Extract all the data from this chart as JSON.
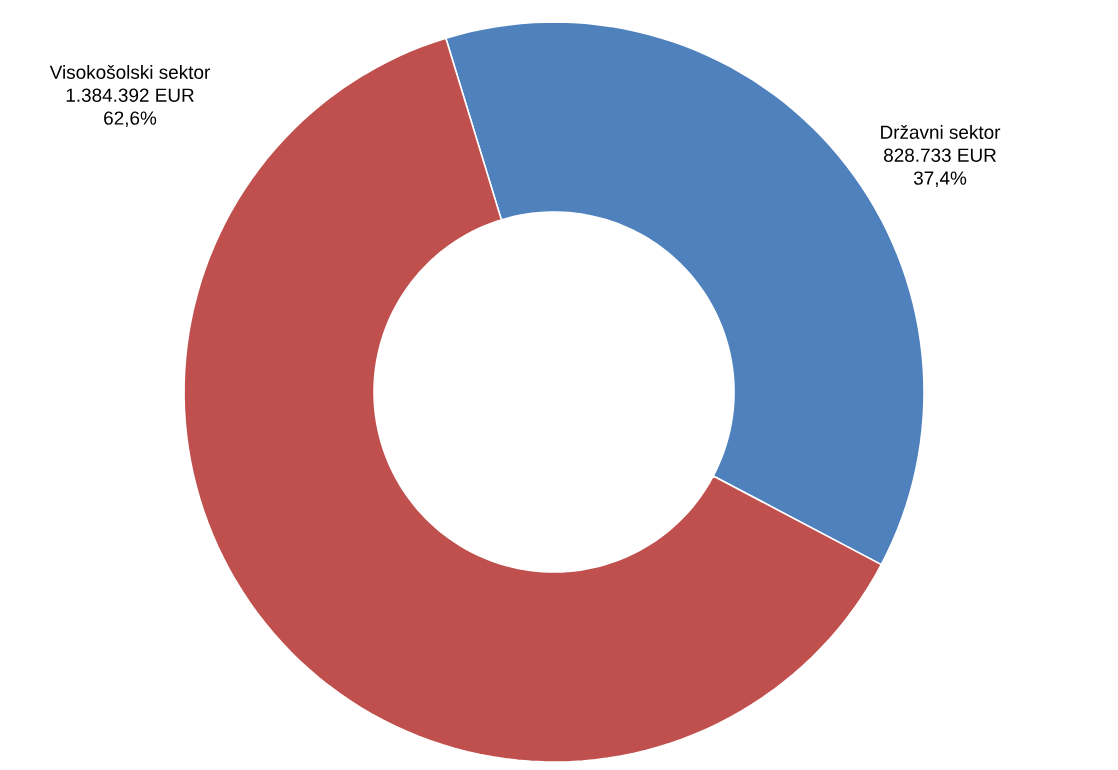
{
  "chart_data": {
    "type": "donut",
    "categories": [
      "Državni sektor",
      "Visokošolski sektor"
    ],
    "values": [
      828733,
      1384392
    ],
    "colors": [
      "#4f81bd",
      "#c0504d"
    ],
    "value_labels": [
      "828.733 EUR",
      "1.384.392 EUR"
    ],
    "annotations": [
      "37,4%",
      "62,6%"
    ]
  }
}
